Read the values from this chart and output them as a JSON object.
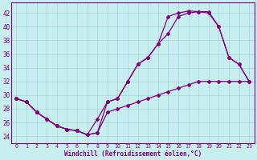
{
  "xlabel": "Windchill (Refroidissement éolien,°C)",
  "bg_color": "#c8eef0",
  "grid_color": "#a0d8dc",
  "line_color": "#800080",
  "xlim": [
    -0.5,
    23.5
  ],
  "ylim": [
    23.0,
    43.5
  ],
  "yticks": [
    24,
    26,
    28,
    30,
    32,
    34,
    36,
    38,
    40,
    42
  ],
  "xticks": [
    0,
    1,
    2,
    3,
    4,
    5,
    6,
    7,
    8,
    9,
    10,
    11,
    12,
    13,
    14,
    15,
    16,
    17,
    18,
    19,
    20,
    21,
    22,
    23
  ],
  "series1_x": [
    0,
    1,
    2,
    3,
    4,
    5,
    6,
    7,
    8,
    9,
    10,
    11,
    12,
    13,
    14,
    15,
    16,
    17,
    18,
    19,
    20,
    21,
    22,
    23
  ],
  "series1_y": [
    29.5,
    29.0,
    27.5,
    26.5,
    25.5,
    25.0,
    24.8,
    24.2,
    24.5,
    29.0,
    29.5,
    32.0,
    34.5,
    35.5,
    37.5,
    39.0,
    41.5,
    42.0,
    42.2,
    42.2,
    40.0,
    35.5,
    34.5,
    32.0
  ],
  "series2_x": [
    0,
    1,
    2,
    3,
    4,
    5,
    6,
    7,
    8,
    9,
    10,
    11,
    12,
    13,
    14,
    15,
    16,
    17,
    18,
    19,
    20,
    21,
    22,
    23
  ],
  "series2_y": [
    29.5,
    29.0,
    27.5,
    26.5,
    25.5,
    25.0,
    24.8,
    24.2,
    26.5,
    29.0,
    29.5,
    32.0,
    34.5,
    35.5,
    37.5,
    41.5,
    42.0,
    42.3,
    42.2,
    42.0,
    40.0,
    35.5,
    34.5,
    32.0
  ],
  "series3_x": [
    0,
    1,
    2,
    3,
    4,
    5,
    6,
    7,
    8,
    9,
    10,
    11,
    12,
    13,
    14,
    15,
    16,
    17,
    18,
    19,
    20,
    21,
    22,
    23
  ],
  "series3_y": [
    29.5,
    29.0,
    27.5,
    26.5,
    25.5,
    25.0,
    24.8,
    24.2,
    24.5,
    27.5,
    28.0,
    28.5,
    29.0,
    29.5,
    30.0,
    30.5,
    31.0,
    31.5,
    32.0,
    32.0,
    32.0,
    32.0,
    32.0,
    32.0
  ]
}
